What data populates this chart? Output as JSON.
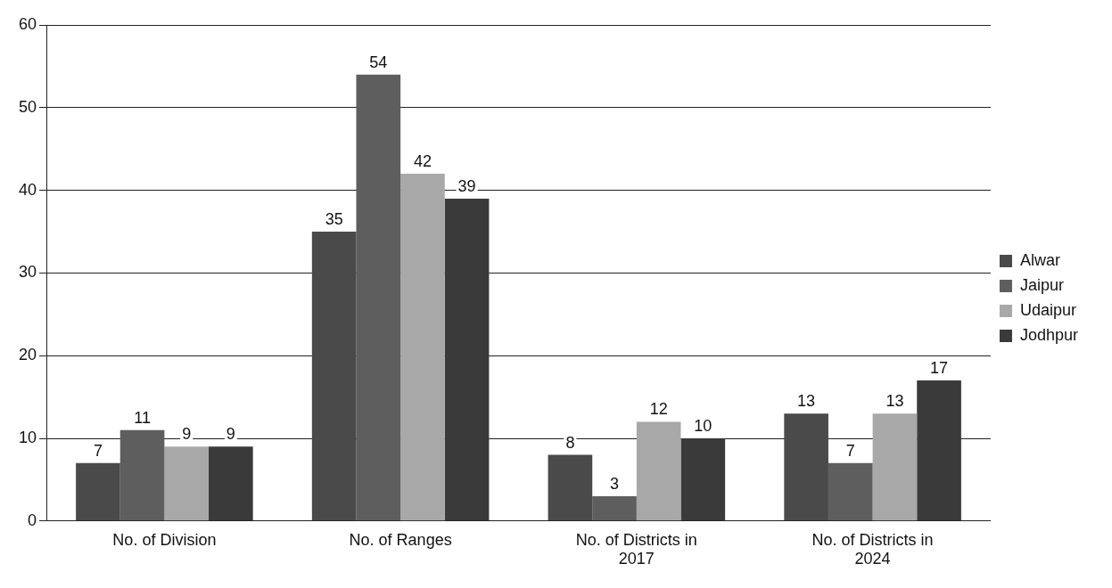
{
  "chart_data": {
    "type": "bar",
    "categories": [
      "No. of Division",
      "No. of Ranges",
      "No. of Districts in 2017",
      "No. of Districts in 2024"
    ],
    "series": [
      {
        "name": "Alwar",
        "color": "#4a4a4a",
        "values": [
          7,
          35,
          8,
          13
        ]
      },
      {
        "name": "Jaipur",
        "color": "#5e5e5e",
        "values": [
          11,
          54,
          3,
          7
        ]
      },
      {
        "name": "Udaipur",
        "color": "#a8a8a8",
        "values": [
          9,
          42,
          12,
          13
        ]
      },
      {
        "name": "Jodhpur",
        "color": "#3a3a3a",
        "values": [
          9,
          39,
          10,
          17
        ]
      }
    ],
    "ylim": [
      0,
      60
    ],
    "yticks": [
      0,
      10,
      20,
      30,
      40,
      50,
      60
    ],
    "grid": "y",
    "legend": "right",
    "data_labels": true
  }
}
